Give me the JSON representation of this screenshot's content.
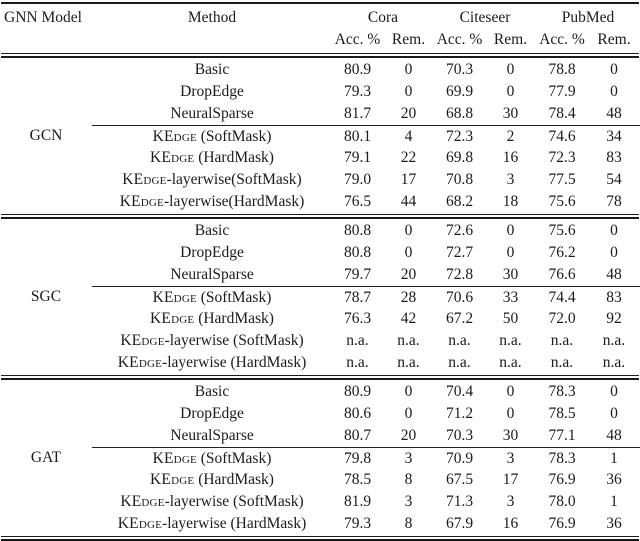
{
  "page": {
    "background_color": "#ffffff",
    "text_color": "#1b1b1b",
    "rule_color": "#1a1a1a"
  },
  "table": {
    "header": {
      "model_col": "GNN Model",
      "method_col": "Method",
      "groups": [
        {
          "name": "Cora",
          "acc": "Acc. %",
          "rem": "Rem."
        },
        {
          "name": "Citeseer",
          "acc": "Acc. %",
          "rem": "Rem."
        },
        {
          "name": "PubMed",
          "acc": "Acc. %",
          "rem": "Rem."
        }
      ]
    },
    "sections": [
      {
        "model": "GCN",
        "rows": [
          {
            "method_sc": "",
            "method_rest": "Basic",
            "values": [
              "80.9",
              "0",
              "70.3",
              "0",
              "78.8",
              "0"
            ]
          },
          {
            "method_sc": "",
            "method_rest": "DropEdge",
            "values": [
              "79.3",
              "0",
              "69.9",
              "0",
              "77.9",
              "0"
            ]
          },
          {
            "method_sc": "",
            "method_rest": "NeuralSparse",
            "values": [
              "81.7",
              "20",
              "68.8",
              "30",
              "78.4",
              "48"
            ]
          },
          {
            "method_sc": "KEdge",
            "method_rest": " (SoftMask)",
            "values": [
              "80.1",
              "4",
              "72.3",
              "2",
              "74.6",
              "34"
            ]
          },
          {
            "method_sc": "KEdge",
            "method_rest": " (HardMask)",
            "values": [
              "79.1",
              "22",
              "69.8",
              "16",
              "72.3",
              "83"
            ]
          },
          {
            "method_sc": "KEdge",
            "method_rest": "-layerwise(SoftMask)",
            "values": [
              "79.0",
              "17",
              "70.8",
              "3",
              "77.5",
              "54"
            ]
          },
          {
            "method_sc": "KEdge",
            "method_rest": "-layerwise(HardMask)",
            "values": [
              "76.5",
              "44",
              "68.2",
              "18",
              "75.6",
              "78"
            ]
          }
        ]
      },
      {
        "model": "SGC",
        "rows": [
          {
            "method_sc": "",
            "method_rest": "Basic",
            "values": [
              "80.8",
              "0",
              "72.6",
              "0",
              "75.6",
              "0"
            ]
          },
          {
            "method_sc": "",
            "method_rest": "DropEdge",
            "values": [
              "80.8",
              "0",
              "72.7",
              "0",
              "76.2",
              "0"
            ]
          },
          {
            "method_sc": "",
            "method_rest": "NeuralSparse",
            "values": [
              "79.7",
              "20",
              "72.8",
              "30",
              "76.6",
              "48"
            ]
          },
          {
            "method_sc": "KEdge",
            "method_rest": " (SoftMask)",
            "values": [
              "78.7",
              "28",
              "70.6",
              "33",
              "74.4",
              "83"
            ]
          },
          {
            "method_sc": "KEdge",
            "method_rest": " (HardMask)",
            "values": [
              "76.3",
              "42",
              "67.2",
              "50",
              "72.0",
              "92"
            ]
          },
          {
            "method_sc": "KEdge",
            "method_rest": "-layerwise (SoftMask)",
            "values": [
              "n.a.",
              "n.a.",
              "n.a.",
              "n.a.",
              "n.a.",
              "n.a."
            ]
          },
          {
            "method_sc": "KEdge",
            "method_rest": "-layerwise (HardMask)",
            "values": [
              "n.a.",
              "n.a.",
              "n.a.",
              "n.a.",
              "n.a.",
              "n.a."
            ]
          }
        ]
      },
      {
        "model": "GAT",
        "rows": [
          {
            "method_sc": "",
            "method_rest": "Basic",
            "values": [
              "80.9",
              "0",
              "70.4",
              "0",
              "78.3",
              "0"
            ]
          },
          {
            "method_sc": "",
            "method_rest": "DropEdge",
            "values": [
              "80.6",
              "0",
              "71.2",
              "0",
              "78.5",
              "0"
            ]
          },
          {
            "method_sc": "",
            "method_rest": "NeuralSparse",
            "values": [
              "80.7",
              "20",
              "70.3",
              "30",
              "77.1",
              "48"
            ]
          },
          {
            "method_sc": "KEdge",
            "method_rest": " (SoftMask)",
            "values": [
              "79.8",
              "3",
              "70.9",
              "3",
              "78.3",
              "1"
            ]
          },
          {
            "method_sc": "KEdge",
            "method_rest": " (HardMask)",
            "values": [
              "78.5",
              "8",
              "67.5",
              "17",
              "76.9",
              "36"
            ]
          },
          {
            "method_sc": "KEdge",
            "method_rest": "-layerwise (SoftMask)",
            "values": [
              "81.9",
              "3",
              "71.3",
              "3",
              "78.0",
              "1"
            ]
          },
          {
            "method_sc": "KEdge",
            "method_rest": "-layerwise (HardMask)",
            "values": [
              "79.3",
              "8",
              "67.9",
              "16",
              "76.9",
              "36"
            ]
          }
        ]
      }
    ]
  }
}
